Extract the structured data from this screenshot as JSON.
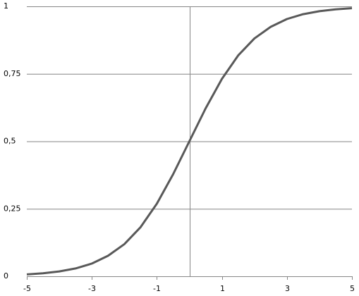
{
  "chart_data": {
    "type": "line",
    "x": [
      -5,
      -4.5,
      -4,
      -3.5,
      -3,
      -2.5,
      -2,
      -1.5,
      -1,
      -0.5,
      0,
      0.5,
      1,
      1.5,
      2,
      2.5,
      3,
      3.5,
      4,
      4.5,
      5
    ],
    "series": [
      {
        "color": "#595959",
        "values": [
          0.0067,
          0.011,
          0.018,
          0.029,
          0.047,
          0.076,
          0.119,
          0.182,
          0.269,
          0.378,
          0.5,
          0.622,
          0.731,
          0.818,
          0.881,
          0.924,
          0.953,
          0.971,
          0.982,
          0.989,
          0.993
        ]
      }
    ],
    "xlim": [
      -5,
      5
    ],
    "xticks": [
      -5,
      -3,
      -1,
      1,
      3,
      5
    ],
    "ylim": [
      0,
      1
    ],
    "yticks": [
      0,
      {
        "value": 0.25,
        "label": "0,25"
      },
      {
        "value": 0.5,
        "label": "0,5"
      },
      {
        "value": 0.75,
        "label": "0,75"
      },
      1
    ],
    "grid": true
  }
}
